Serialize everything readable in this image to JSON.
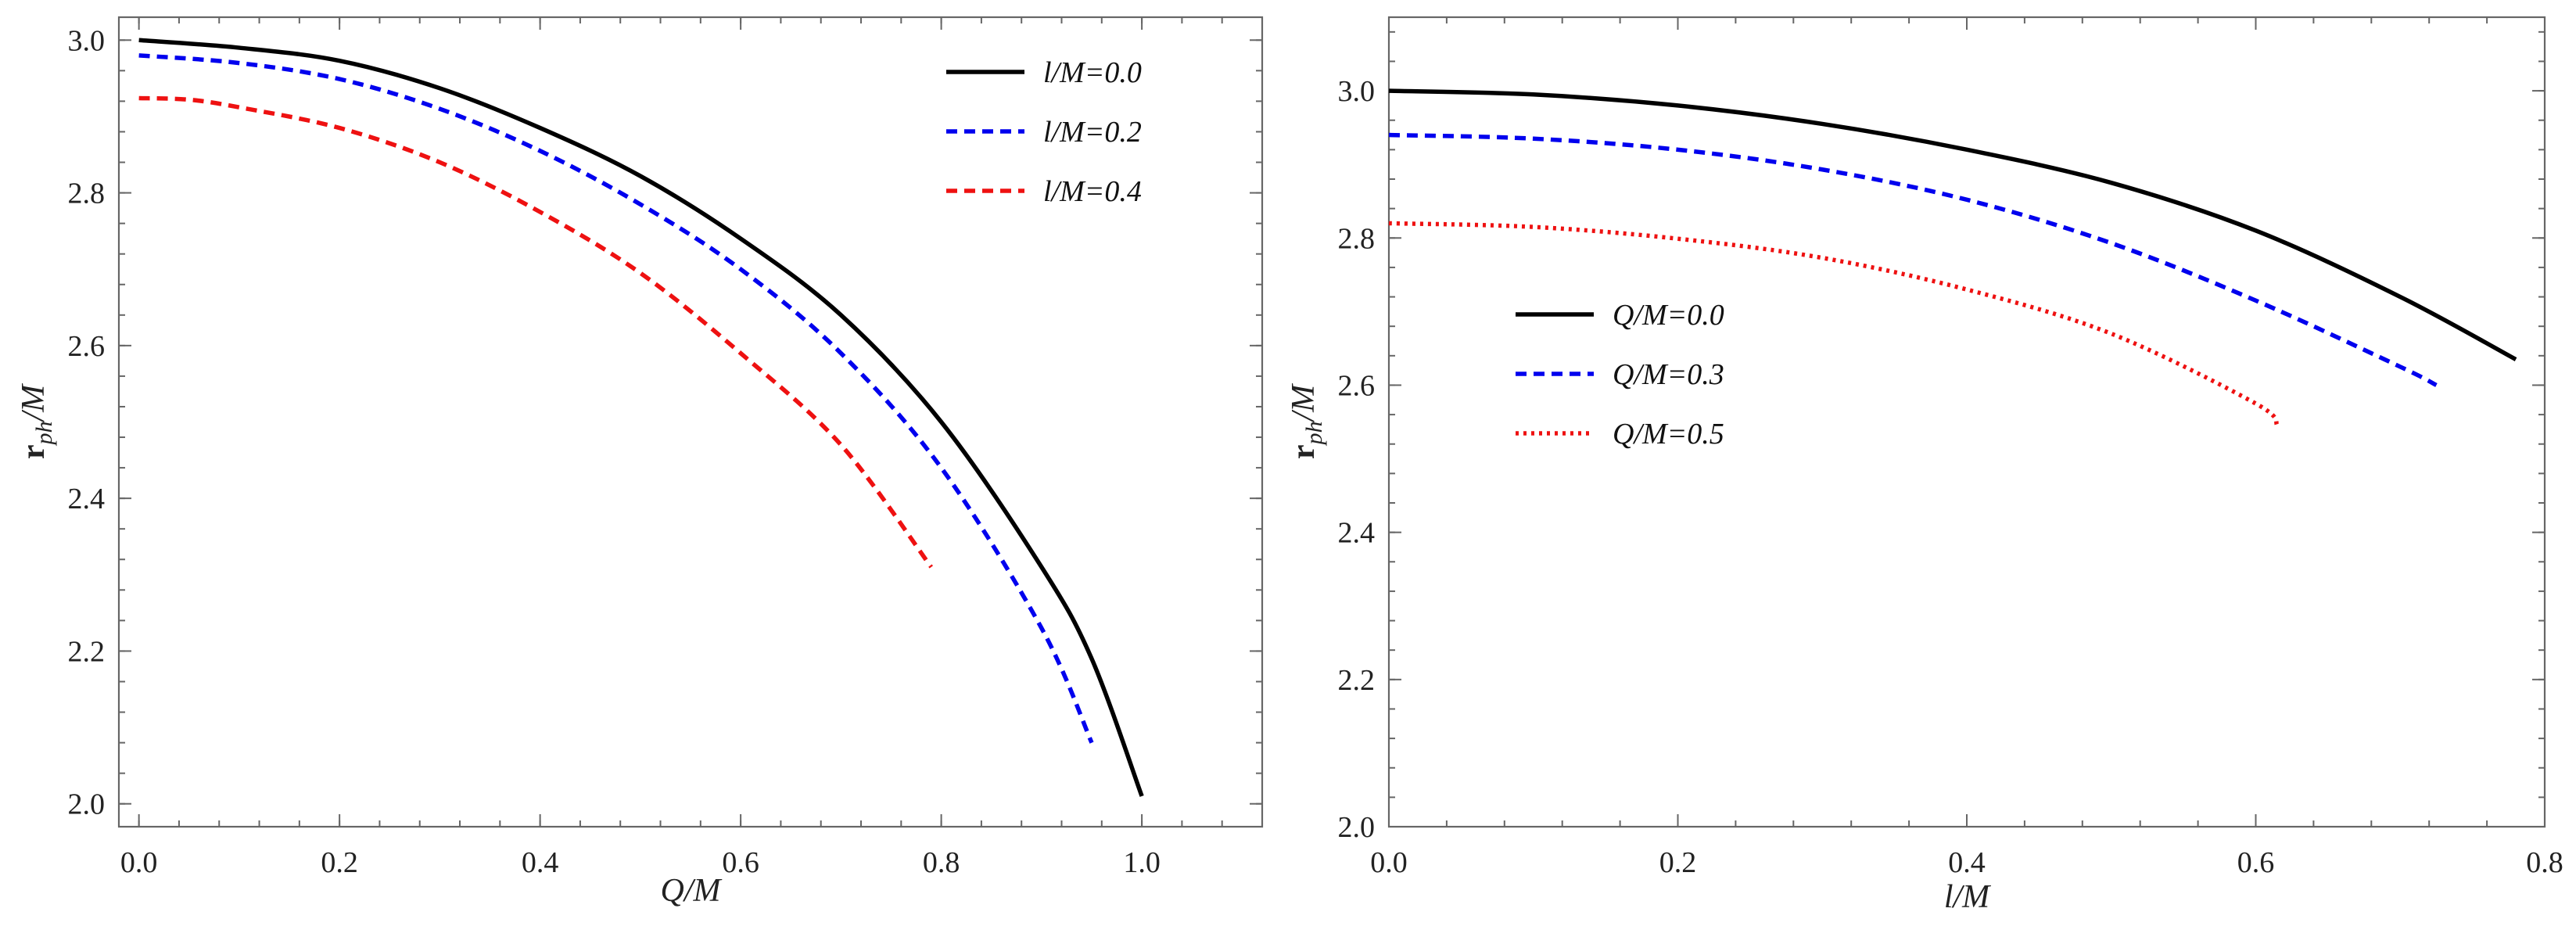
{
  "chart_data": [
    {
      "type": "line",
      "title": "",
      "xlabel": "Q/M",
      "ylabel_main": "r",
      "ylabel_sub": "ph",
      "ylabel_tail": "/M",
      "xlim": [
        -0.02,
        1.12
      ],
      "ylim": [
        1.97,
        3.03
      ],
      "xticks": [
        0.0,
        0.2,
        0.4,
        0.6,
        0.8,
        1.0
      ],
      "xtick_labels": [
        "0.0",
        "0.2",
        "0.4",
        "0.6",
        "0.8",
        "1.0"
      ],
      "yticks": [
        2.0,
        2.2,
        2.4,
        2.6,
        2.8,
        3.0
      ],
      "ytick_labels": [
        "2.0",
        "2.2",
        "2.4",
        "2.6",
        "2.8",
        "3.0"
      ],
      "legend_position": "top-right",
      "series": [
        {
          "name": "l/M=0.0",
          "color": "#000000",
          "style": "solid",
          "x": [
            0.0,
            0.1,
            0.2,
            0.3,
            0.4,
            0.5,
            0.6,
            0.7,
            0.8,
            0.9,
            0.95,
            1.0
          ],
          "y": [
            3.0,
            2.99,
            2.973,
            2.937,
            2.885,
            2.822,
            2.74,
            2.64,
            2.5,
            2.31,
            2.19,
            2.01
          ]
        },
        {
          "name": "l/M=0.2",
          "color": "#0000ee",
          "style": "dashed",
          "x": [
            0.0,
            0.1,
            0.2,
            0.3,
            0.4,
            0.5,
            0.6,
            0.7,
            0.8,
            0.9,
            0.95
          ],
          "y": [
            2.98,
            2.97,
            2.949,
            2.91,
            2.855,
            2.785,
            2.7,
            2.59,
            2.44,
            2.23,
            2.08
          ]
        },
        {
          "name": "l/M=0.4",
          "color": "#ee1111",
          "style": "dashed",
          "x": [
            0.0,
            0.05,
            0.1,
            0.2,
            0.3,
            0.4,
            0.5,
            0.6,
            0.7,
            0.79
          ],
          "y": [
            2.924,
            2.922,
            2.912,
            2.885,
            2.84,
            2.775,
            2.695,
            2.59,
            2.47,
            2.31
          ]
        }
      ]
    },
    {
      "type": "line",
      "title": "",
      "xlabel": "l/M",
      "ylabel_main": "r",
      "ylabel_sub": "ph",
      "ylabel_tail": "/M",
      "xlim": [
        0.0,
        0.8
      ],
      "ylim": [
        2.0,
        3.1
      ],
      "xticks": [
        0.0,
        0.2,
        0.4,
        0.6,
        0.8
      ],
      "xtick_labels": [
        "0.0",
        "0.2",
        "0.4",
        "0.6",
        "0.8"
      ],
      "yticks": [
        2.0,
        2.2,
        2.4,
        2.6,
        2.8,
        3.0
      ],
      "ytick_labels": [
        "2.0",
        "2.2",
        "2.4",
        "2.6",
        "2.8",
        "3.0"
      ],
      "legend_position": "left-middle",
      "series": [
        {
          "name": "Q/M=0.0",
          "color": "#000000",
          "style": "solid",
          "x": [
            0.0,
            0.1,
            0.2,
            0.3,
            0.4,
            0.5,
            0.6,
            0.7,
            0.78
          ],
          "y": [
            3.0,
            2.995,
            2.98,
            2.955,
            2.92,
            2.875,
            2.81,
            2.72,
            2.635
          ]
        },
        {
          "name": "Q/M=0.3",
          "color": "#0000ee",
          "style": "dashed",
          "x": [
            0.0,
            0.1,
            0.2,
            0.3,
            0.4,
            0.5,
            0.6,
            0.7,
            0.725
          ],
          "y": [
            2.94,
            2.935,
            2.92,
            2.893,
            2.852,
            2.793,
            2.715,
            2.625,
            2.6
          ]
        },
        {
          "name": "Q/M=0.5",
          "color": "#ee1111",
          "style": "dotted",
          "x": [
            0.0,
            0.1,
            0.2,
            0.3,
            0.4,
            0.5,
            0.6,
            0.615
          ],
          "y": [
            2.82,
            2.815,
            2.799,
            2.773,
            2.73,
            2.67,
            2.575,
            2.545
          ]
        }
      ]
    }
  ]
}
